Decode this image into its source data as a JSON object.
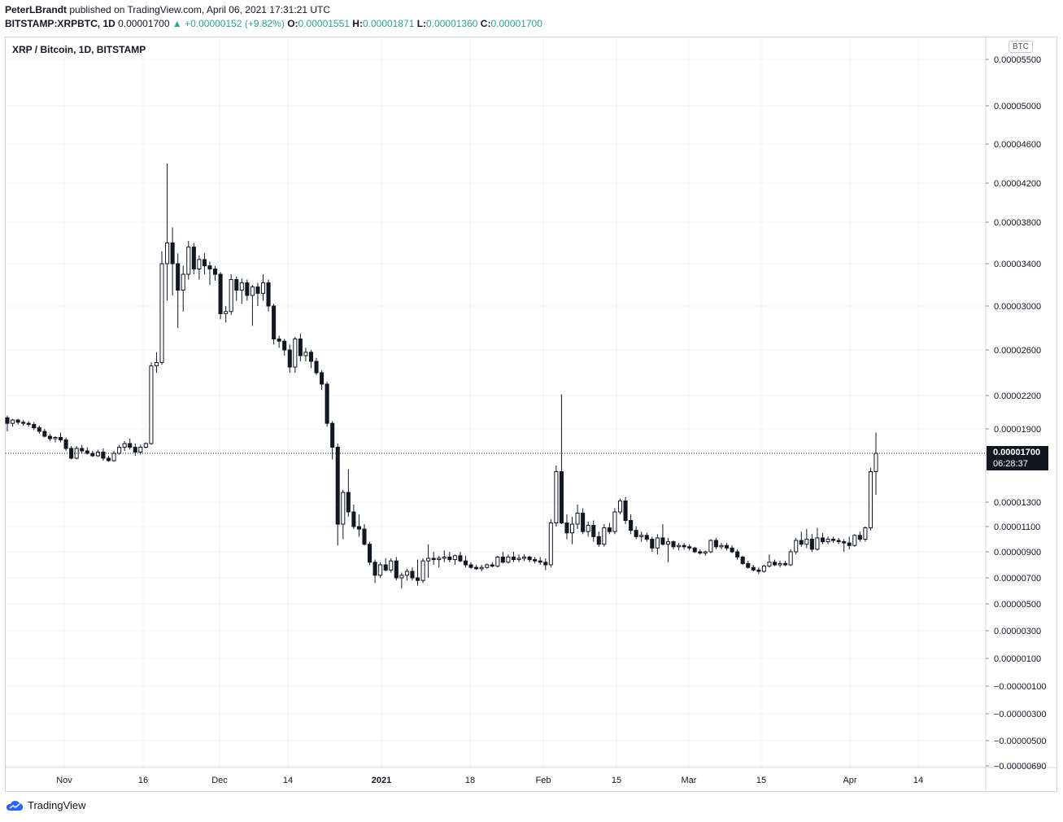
{
  "header": {
    "author": "PeterLBrandt",
    "published": "published on TradingView.com, April 06, 2021 17:31:21 UTC",
    "symbol": "BITSTAMP:XRPBTC, 1D",
    "last": "0.00001700",
    "change": "▲ +0.00000152 (+9.82%)",
    "o_label": "O:",
    "o": "0.00001551",
    "h_label": "H:",
    "h": "0.00001871",
    "l_label": "L:",
    "l": "0.00001360",
    "c_label": "C:",
    "c": "0.00001700"
  },
  "chart_title": "XRP / Bitcoin, 1D, BITSTAMP",
  "currency_badge": "BTC",
  "price_tag": {
    "price": "0.00001700",
    "countdown": "06:28:37"
  },
  "footer_brand": "TradingView",
  "colors": {
    "candle": "#131722",
    "grid": "#f0f3fa",
    "up": "#26a69a",
    "frame": "#d1d4dc"
  },
  "chart_data": {
    "type": "candlestick",
    "title": "XRP / Bitcoin, 1D, BITSTAMP",
    "y_ticks": [
      "0.00005500",
      "0.00005000",
      "0.00004600",
      "0.00004200",
      "0.00003800",
      "0.00003400",
      "0.00003000",
      "0.00002600",
      "0.00002200",
      "0.00001900",
      "0.00001300",
      "0.00001100",
      "0.00000900",
      "0.00000700",
      "0.00000500",
      "0.00000300",
      "0.00000100",
      "−0.00000100",
      "−0.00000300",
      "−0.00000500",
      "−0.00000690"
    ],
    "x_ticks": [
      "Nov",
      "16",
      "Dec",
      "14",
      "2021",
      "18",
      "Feb",
      "15",
      "Mar",
      "15",
      "Apr",
      "14"
    ],
    "current_price": 1.7e-05,
    "candles": [
      [
        2e-05,
        2.02e-05,
        1.88e-05,
        1.95e-05
      ],
      [
        1.95e-05,
        1.99e-05,
        1.92e-05,
        1.98e-05
      ],
      [
        1.98e-05,
        1.99e-05,
        1.94e-05,
        1.96e-05
      ],
      [
        1.96e-05,
        1.98e-05,
        1.93e-05,
        1.95e-05
      ],
      [
        1.95e-05,
        1.97e-05,
        1.92e-05,
        1.94e-05
      ],
      [
        1.94e-05,
        1.96e-05,
        1.89e-05,
        1.91e-05
      ],
      [
        1.91e-05,
        1.93e-05,
        1.86e-05,
        1.88e-05
      ],
      [
        1.88e-05,
        1.9e-05,
        1.83e-05,
        1.84e-05
      ],
      [
        1.84e-05,
        1.86e-05,
        1.8e-05,
        1.82e-05
      ],
      [
        1.82e-05,
        1.84e-05,
        1.79e-05,
        1.83e-05
      ],
      [
        1.83e-05,
        1.87e-05,
        1.79e-05,
        1.81e-05
      ],
      [
        1.81e-05,
        1.83e-05,
        1.72e-05,
        1.74e-05
      ],
      [
        1.74e-05,
        1.76e-05,
        1.65e-05,
        1.66e-05
      ],
      [
        1.66e-05,
        1.76e-05,
        1.65e-05,
        1.74e-05
      ],
      [
        1.74e-05,
        1.77e-05,
        1.7e-05,
        1.72e-05
      ],
      [
        1.72e-05,
        1.75e-05,
        1.69e-05,
        1.7e-05
      ],
      [
        1.7e-05,
        1.72e-05,
        1.67e-05,
        1.68e-05
      ],
      [
        1.68e-05,
        1.73e-05,
        1.67e-05,
        1.71e-05
      ],
      [
        1.71e-05,
        1.74e-05,
        1.64e-05,
        1.66e-05
      ],
      [
        1.66e-05,
        1.68e-05,
        1.63e-05,
        1.64e-05
      ],
      [
        1.64e-05,
        1.72e-05,
        1.63e-05,
        1.7e-05
      ],
      [
        1.7e-05,
        1.77e-05,
        1.69e-05,
        1.75e-05
      ],
      [
        1.75e-05,
        1.8e-05,
        1.72e-05,
        1.78e-05
      ],
      [
        1.78e-05,
        1.82e-05,
        1.73e-05,
        1.75e-05
      ],
      [
        1.75e-05,
        1.78e-05,
        1.68e-05,
        1.71e-05
      ],
      [
        1.71e-05,
        1.77e-05,
        1.69e-05,
        1.75e-05
      ],
      [
        1.75e-05,
        1.79e-05,
        1.74e-05,
        1.78e-05
      ],
      [
        1.78e-05,
        2.49e-05,
        1.77e-05,
        2.46e-05
      ],
      [
        2.46e-05,
        2.58e-05,
        2.4e-05,
        2.49e-05
      ],
      [
        2.49e-05,
        3.52e-05,
        2.47e-05,
        3.4e-05
      ],
      [
        3.4e-05,
        4.4e-05,
        3.05e-05,
        3.6e-05
      ],
      [
        3.6e-05,
        3.75e-05,
        3.1e-05,
        3.4e-05
      ],
      [
        3.4e-05,
        3.5e-05,
        2.8e-05,
        3.15e-05
      ],
      [
        3.15e-05,
        3.38e-05,
        2.95e-05,
        3.3e-05
      ],
      [
        3.3e-05,
        3.62e-05,
        3.25e-05,
        3.56e-05
      ],
      [
        3.56e-05,
        3.6e-05,
        3.3e-05,
        3.35e-05
      ],
      [
        3.35e-05,
        3.48e-05,
        3.25e-05,
        3.44e-05
      ],
      [
        3.44e-05,
        3.5e-05,
        3.3e-05,
        3.38e-05
      ],
      [
        3.38e-05,
        3.42e-05,
        3.2e-05,
        3.35e-05
      ],
      [
        3.35e-05,
        3.38e-05,
        3.24e-05,
        3.3e-05
      ],
      [
        3.3e-05,
        3.32e-05,
        2.88e-05,
        2.93e-05
      ],
      [
        2.93e-05,
        3e-05,
        2.85e-05,
        2.95e-05
      ],
      [
        2.95e-05,
        3.3e-05,
        2.92e-05,
        3.25e-05
      ],
      [
        3.25e-05,
        3.28e-05,
        3.05e-05,
        3.15e-05
      ],
      [
        3.15e-05,
        3.26e-05,
        3.02e-05,
        3.22e-05
      ],
      [
        3.22e-05,
        3.25e-05,
        3.05e-05,
        3.1e-05
      ],
      [
        3.1e-05,
        3.2e-05,
        2.82e-05,
        3.18e-05
      ],
      [
        3.18e-05,
        3.22e-05,
        3e-05,
        3.12e-05
      ],
      [
        3.12e-05,
        3.3e-05,
        3.05e-05,
        3.22e-05
      ],
      [
        3.22e-05,
        3.25e-05,
        2.95e-05,
        3e-05
      ],
      [
        3e-05,
        3.02e-05,
        2.65e-05,
        2.7e-05
      ],
      [
        2.7e-05,
        2.73e-05,
        2.62e-05,
        2.68e-05
      ],
      [
        2.68e-05,
        2.7e-05,
        2.55e-05,
        2.6e-05
      ],
      [
        2.6e-05,
        2.65e-05,
        2.4e-05,
        2.45e-05
      ],
      [
        2.45e-05,
        2.72e-05,
        2.4e-05,
        2.7e-05
      ],
      [
        2.7e-05,
        2.75e-05,
        2.5e-05,
        2.55e-05
      ],
      [
        2.55e-05,
        2.62e-05,
        2.5e-05,
        2.58e-05
      ],
      [
        2.58e-05,
        2.6e-05,
        2.44e-05,
        2.5e-05
      ],
      [
        2.5e-05,
        2.53e-05,
        2.38e-05,
        2.4e-05
      ],
      [
        2.4e-05,
        2.42e-05,
        2.25e-05,
        2.3e-05
      ],
      [
        2.3e-05,
        2.32e-05,
        1.92e-05,
        1.95e-05
      ],
      [
        1.95e-05,
        1.97e-05,
        1.65e-05,
        1.75e-05
      ],
      [
        1.75e-05,
        1.78e-05,
        9.5e-06,
        1.12e-05
      ],
      [
        1.12e-05,
        1.4e-05,
        1e-05,
        1.38e-05
      ],
      [
        1.38e-05,
        1.57e-05,
        1.18e-05,
        1.22e-05
      ],
      [
        1.22e-05,
        1.28e-05,
        1.08e-05,
        1.1e-05
      ],
      [
        1.1e-05,
        1.2e-05,
        1.02e-05,
        1.08e-05
      ],
      [
        1.08e-05,
        1.12e-05,
        9.5e-06,
        9.6e-06
      ],
      [
        9.6e-06,
        9.8e-06,
        8e-06,
        8.2e-06
      ],
      [
        8.2e-06,
        8.4e-06,
        6.6e-06,
        7.2e-06
      ],
      [
        7.2e-06,
        8.2e-06,
        7e-06,
        8e-06
      ],
      [
        8e-06,
        8.5e-06,
        7.5e-06,
        7.6e-06
      ],
      [
        7.6e-06,
        8.5e-06,
        7.4e-06,
        8.3e-06
      ],
      [
        8.3e-06,
        8.6e-06,
        6.8e-06,
        7e-06
      ],
      [
        7e-06,
        7.4e-06,
        6.2e-06,
        7.2e-06
      ],
      [
        7.2e-06,
        7.7e-06,
        6.8e-06,
        7.5e-06
      ],
      [
        7.5e-06,
        7.8e-06,
        6.8e-06,
        7e-06
      ],
      [
        7e-06,
        8.4e-06,
        6.4e-06,
        6.8e-06
      ],
      [
        6.8e-06,
        8.5e-06,
        6.6e-06,
        8.3e-06
      ],
      [
        8.3e-06,
        9.6e-06,
        7e-06,
        8.5e-06
      ],
      [
        8.5e-06,
        9e-06,
        8e-06,
        8.4e-06
      ],
      [
        8.4e-06,
        8.7e-06,
        7.8e-06,
        8.5e-06
      ],
      [
        8.5e-06,
        9.1e-06,
        8.2e-06,
        8.6e-06
      ],
      [
        8.6e-06,
        9e-06,
        8.2e-06,
        8.4e-06
      ],
      [
        8.4e-06,
        8.8e-06,
        8e-06,
        8.7e-06
      ],
      [
        8.7e-06,
        9e-06,
        8.2e-06,
        8.3e-06
      ],
      [
        8.3e-06,
        8.7e-06,
        7.8e-06,
        8e-06
      ],
      [
        8e-06,
        8.2e-06,
        7.7e-06,
        7.8e-06
      ],
      [
        7.8e-06,
        8e-06,
        7.6e-06,
        7.7e-06
      ],
      [
        7.7e-06,
        8e-06,
        7.5e-06,
        7.8e-06
      ],
      [
        7.8e-06,
        8.1e-06,
        7.7e-06,
        8e-06
      ],
      [
        8e-06,
        8.2e-06,
        7.8e-06,
        7.9e-06
      ],
      [
        7.9e-06,
        8.7e-06,
        7.8e-06,
        8.6e-06
      ],
      [
        8.6e-06,
        9e-06,
        8.1e-06,
        8.2e-06
      ],
      [
        8.2e-06,
        8.8e-06,
        8.1e-06,
        8.6e-06
      ],
      [
        8.6e-06,
        9e-06,
        8.2e-06,
        8.4e-06
      ],
      [
        8.4e-06,
        8.8e-06,
        8.2e-06,
        8.5e-06
      ],
      [
        8.5e-06,
        8.8e-06,
        8.3e-06,
        8.6e-06
      ],
      [
        8.6e-06,
        8.7e-06,
        8.2e-06,
        8.4e-06
      ],
      [
        8.4e-06,
        8.6e-06,
        8.1e-06,
        8.3e-06
      ],
      [
        8.3e-06,
        8.6e-06,
        8e-06,
        8.2e-06
      ],
      [
        8.2e-06,
        8.5e-06,
        7.6e-06,
        8e-06
      ],
      [
        8e-06,
        1.16e-05,
        7.8e-06,
        1.13e-05
      ],
      [
        1.13e-05,
        1.6e-05,
        1.1e-05,
        1.55e-05
      ],
      [
        1.55e-05,
        2.21e-05,
        1.12e-05,
        1.13e-05
      ],
      [
        1.13e-05,
        1.2e-05,
        1e-05,
        1.05e-05
      ],
      [
        1.05e-05,
        1.18e-05,
        9.6e-06,
        1.12e-05
      ],
      [
        1.12e-05,
        1.28e-05,
        1.08e-05,
        1.21e-05
      ],
      [
        1.21e-05,
        1.25e-05,
        1.04e-05,
        1.06e-05
      ],
      [
        1.06e-05,
        1.14e-05,
        1.02e-05,
        1.11e-05
      ],
      [
        1.11e-05,
        1.15e-05,
        9.8e-06,
        1.02e-05
      ],
      [
        1.02e-05,
        1.06e-05,
        9.4e-06,
        9.6e-06
      ],
      [
        9.6e-06,
        1.12e-05,
        9.4e-06,
        1.09e-05
      ],
      [
        1.09e-05,
        1.13e-05,
        1.04e-05,
        1.06e-05
      ],
      [
        1.06e-05,
        1.25e-05,
        1.04e-05,
        1.22e-05
      ],
      [
        1.22e-05,
        1.33e-05,
        1.2e-05,
        1.31e-05
      ],
      [
        1.31e-05,
        1.34e-05,
        1.12e-05,
        1.15e-05
      ],
      [
        1.15e-05,
        1.2e-05,
        1.04e-05,
        1.07e-05
      ],
      [
        1.07e-05,
        1.1e-05,
        1e-05,
        1.02e-05
      ],
      [
        1.02e-05,
        1.06e-05,
        9.8e-06,
        1.03e-05
      ],
      [
        1.03e-05,
        1.05e-05,
        9.8e-06,
        1e-05
      ],
      [
        1e-05,
        1.02e-05,
        9e-06,
        9.3e-06
      ],
      [
        9.3e-06,
        1.04e-05,
        8.8e-06,
        1.01e-05
      ],
      [
        1.01e-05,
        1.12e-05,
        9.5e-06,
        9.6e-06
      ],
      [
        9.6e-06,
        1.01e-05,
        8.2e-06,
        9.8e-06
      ],
      [
        9.8e-06,
        9.9e-06,
        9.2e-06,
        9.4e-06
      ],
      [
        9.4e-06,
        9.7e-06,
        9.1e-06,
        9.5e-06
      ],
      [
        9.5e-06,
        9.7e-06,
        9.2e-06,
        9.4e-06
      ],
      [
        9.4e-06,
        9.6e-06,
        9.1e-06,
        9.3e-06
      ],
      [
        9.3e-06,
        9.4e-06,
        8.9e-06,
        9e-06
      ],
      [
        9e-06,
        9.2e-06,
        8.8e-06,
        8.9e-06
      ],
      [
        8.9e-06,
        9.1e-06,
        8.7e-06,
        9e-06
      ],
      [
        9e-06,
        1e-05,
        8.9e-06,
        9.9e-06
      ],
      [
        9.9e-06,
        1.01e-05,
        9.2e-06,
        9.4e-06
      ],
      [
        9.4e-06,
        9.7e-06,
        9.2e-06,
        9.5e-06
      ],
      [
        9.5e-06,
        9.7e-06,
        9.1e-06,
        9.3e-06
      ],
      [
        9.3e-06,
        9.5e-06,
        8.9e-06,
        9e-06
      ],
      [
        9e-06,
        9.2e-06,
        8.4e-06,
        8.6e-06
      ],
      [
        8.6e-06,
        8.7e-06,
        8e-06,
        8.1e-06
      ],
      [
        8.1e-06,
        8.3e-06,
        7.7e-06,
        7.8e-06
      ],
      [
        7.8e-06,
        8e-06,
        7.5e-06,
        7.6e-06
      ],
      [
        7.6e-06,
        7.8e-06,
        7.3e-06,
        7.5e-06
      ],
      [
        7.5e-06,
        8e-06,
        7.4e-06,
        7.9e-06
      ],
      [
        7.9e-06,
        8.8e-06,
        7.8e-06,
        8.2e-06
      ],
      [
        8.2e-06,
        8.4e-06,
        7.9e-06,
        8e-06
      ],
      [
        8e-06,
        8.3e-06,
        7.8e-06,
        8.1e-06
      ],
      [
        8.1e-06,
        8.3e-06,
        7.9e-06,
        8e-06
      ],
      [
        8e-06,
        9.2e-06,
        7.9e-06,
        9e-06
      ],
      [
        9e-06,
        1.01e-05,
        8.8e-06,
        9.9e-06
      ],
      [
        9.9e-06,
        1.06e-05,
        9.4e-06,
        9.6e-06
      ],
      [
        9.6e-06,
        1.08e-05,
        9.3e-06,
        1e-05
      ],
      [
        1e-05,
        1.04e-05,
        9e-06,
        9.2e-06
      ],
      [
        9.2e-06,
        1.09e-05,
        9.1e-06,
        1.01e-05
      ],
      [
        1.01e-05,
        1.05e-05,
        9.6e-06,
        9.8e-06
      ],
      [
        9.8e-06,
        1.02e-05,
        9.6e-06,
        1e-05
      ],
      [
        1e-05,
        1.02e-05,
        9.7e-06,
        9.9e-06
      ],
      [
        9.9e-06,
        1.01e-05,
        9.6e-06,
        9.8e-06
      ],
      [
        9.8e-06,
        1e-05,
        9e-06,
        9.7e-06
      ],
      [
        9.7e-06,
        1.02e-05,
        9.2e-06,
        9.5e-06
      ],
      [
        9.5e-06,
        1.04e-05,
        9.4e-06,
        1.03e-05
      ],
      [
        1.03e-05,
        1.06e-05,
        9.8e-06,
        1e-05
      ],
      [
        1e-05,
        1.1e-05,
        9.8e-06,
        1.09e-05
      ],
      [
        1.09e-05,
        1.58e-05,
        1.07e-05,
        1.55e-05
      ],
      [
        1.55e-05,
        1.87e-05,
        1.36e-05,
        1.7e-05
      ]
    ]
  }
}
